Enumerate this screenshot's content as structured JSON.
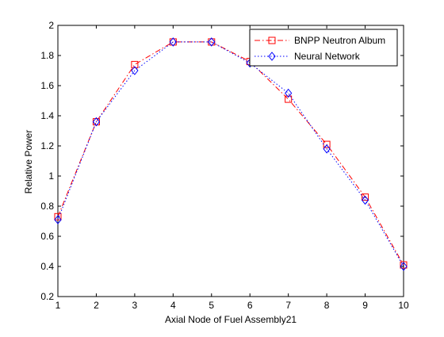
{
  "chart_data": {
    "type": "line",
    "title": "",
    "xlabel": "Axial Node of Fuel Assembly21",
    "ylabel": "Relative Power",
    "xlim": [
      1,
      10
    ],
    "ylim": [
      0.2,
      2
    ],
    "xticks": [
      1,
      2,
      3,
      4,
      5,
      6,
      7,
      8,
      9,
      10
    ],
    "yticks": [
      0.2,
      0.4,
      0.6,
      0.8,
      1,
      1.2,
      1.4,
      1.6,
      1.8,
      2
    ],
    "grid": false,
    "legend_position": "top-right",
    "x": [
      1,
      2,
      3,
      4,
      5,
      6,
      7,
      8,
      9,
      10
    ],
    "series": [
      {
        "name": "BNPP Neutron Album",
        "values": [
          0.73,
          1.36,
          1.74,
          1.89,
          1.89,
          1.76,
          1.51,
          1.21,
          0.86,
          0.41
        ],
        "color": "#ff0000",
        "line_style": "dash-dot",
        "marker": "square"
      },
      {
        "name": "Neural Network",
        "values": [
          0.71,
          1.36,
          1.7,
          1.89,
          1.89,
          1.75,
          1.55,
          1.18,
          0.84,
          0.4
        ],
        "color": "#0000ff",
        "line_style": "dotted",
        "marker": "diamond"
      }
    ]
  }
}
